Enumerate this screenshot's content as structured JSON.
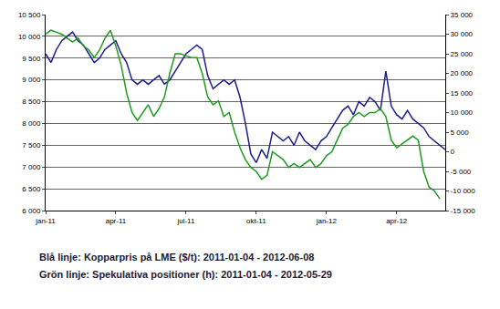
{
  "chart_data": {
    "type": "line",
    "categories": [
      "jan-11",
      null,
      null,
      null,
      null,
      null,
      null,
      null,
      null,
      null,
      null,
      null,
      null,
      "apr-11",
      null,
      null,
      null,
      null,
      null,
      null,
      null,
      null,
      null,
      null,
      null,
      null,
      "jul-11",
      null,
      null,
      null,
      null,
      null,
      null,
      null,
      null,
      null,
      null,
      null,
      null,
      "okt-11",
      null,
      null,
      null,
      null,
      null,
      null,
      null,
      null,
      null,
      null,
      null,
      null,
      "jan-12",
      null,
      null,
      null,
      null,
      null,
      null,
      null,
      null,
      null,
      null,
      null,
      null,
      "apr-12",
      null,
      null,
      null,
      null,
      null,
      null,
      null,
      null,
      null
    ],
    "series": [
      {
        "name": "Blå linje: Kopparpris på LME ($/t): 2011-01-04 - 2012-06-08",
        "color": "#1c1c8f",
        "values": [
          9600,
          9400,
          9700,
          9900,
          10000,
          10100,
          9900,
          9800,
          9600,
          9400,
          9500,
          9700,
          9800,
          9900,
          9600,
          9400,
          9000,
          8900,
          9000,
          8900,
          9000,
          9100,
          8900,
          9000,
          9200,
          9400,
          9600,
          9700,
          9800,
          9700,
          9100,
          8800,
          8900,
          9000,
          8900,
          9000,
          8600,
          8000,
          7300,
          7100,
          7400,
          7200,
          7800,
          7700,
          7600,
          7700,
          7500,
          7800,
          7600,
          7500,
          7400,
          7600,
          7700,
          7900,
          8100,
          8300,
          8400,
          8200,
          8500,
          8400,
          8600,
          8500,
          8300,
          9200,
          8400,
          8200,
          8100,
          8300,
          8100,
          8000,
          7900,
          7700,
          7600,
          7500,
          7400
        ]
      },
      {
        "name": "Grön linje: Spekulativa positioner (h): 2011-01-04 - 2012-05-29",
        "color": "#1e9b1e",
        "axis": "y2",
        "values": [
          30000,
          31000,
          30500,
          30000,
          29000,
          28000,
          29000,
          27000,
          26000,
          24000,
          26000,
          29000,
          31000,
          27000,
          22000,
          15000,
          10000,
          8000,
          10000,
          12000,
          9000,
          11000,
          14000,
          20000,
          25000,
          25000,
          24500,
          24000,
          24000,
          20000,
          14000,
          12000,
          13000,
          9000,
          10000,
          5000,
          1000,
          -2000,
          -4000,
          -5000,
          -7000,
          -6000,
          0,
          -1000,
          -2000,
          -4000,
          -3000,
          -4000,
          -3000,
          -2000,
          -4000,
          -3000,
          -1000,
          0,
          3000,
          6000,
          7000,
          9000,
          10000,
          9000,
          10000,
          10000,
          11000,
          9000,
          3000,
          1000,
          2000,
          3000,
          4000,
          3000,
          -5000,
          -9000,
          -10000,
          -12000,
          null
        ]
      }
    ],
    "ylim": [
      6000,
      10500
    ],
    "yticks": [
      {
        "value": 6000,
        "label": "6 000"
      },
      {
        "value": 6500,
        "label": "6 500"
      },
      {
        "value": 7000,
        "label": "7 000"
      },
      {
        "value": 7500,
        "label": "7 500"
      },
      {
        "value": 8000,
        "label": "8 000"
      },
      {
        "value": 8500,
        "label": "8 500"
      },
      {
        "value": 9000,
        "label": "9 000"
      },
      {
        "value": 9500,
        "label": "9 500"
      },
      {
        "value": 10000,
        "label": "10 000"
      },
      {
        "value": 10500,
        "label": "10 500"
      }
    ],
    "y2lim": [
      -15000,
      35000
    ],
    "y2ticks": [
      {
        "value": -15000,
        "label": "-15 000"
      },
      {
        "value": -10000,
        "label": "-10 000"
      },
      {
        "value": -5000,
        "label": "-5 000"
      },
      0,
      {
        "value": 5000,
        "label": "5 000"
      },
      {
        "value": 10000,
        "label": "10 000"
      },
      {
        "value": 15000,
        "label": "15 000"
      },
      {
        "value": 20000,
        "label": "20 000"
      },
      {
        "value": 25000,
        "label": "25 000"
      },
      {
        "value": 30000,
        "label": "30 000"
      },
      {
        "value": 35000,
        "label": "35 000"
      }
    ],
    "grid": true
  }
}
